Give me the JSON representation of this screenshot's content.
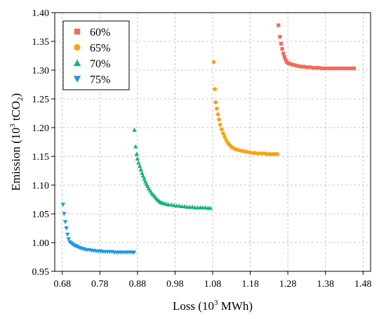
{
  "chart_data": {
    "type": "scatter",
    "xlabel": {
      "main": "Loss (10",
      "sup": "3",
      "rest": " MWh)"
    },
    "ylabel": {
      "main": "Emission (10",
      "sup": "3",
      "mid": " tCO",
      "sub": "2",
      "rest": ")"
    },
    "xlim": [
      0.66,
      1.5
    ],
    "ylim": [
      0.95,
      1.4
    ],
    "xticks": [
      0.68,
      0.78,
      0.88,
      0.98,
      1.08,
      1.18,
      1.28,
      1.38,
      1.48
    ],
    "xtick_labels": [
      "0.68",
      "0.78",
      "0.88",
      "0.98",
      "1.08",
      "1.18",
      "1.28",
      "1.38",
      "1.48"
    ],
    "yticks": [
      0.95,
      1.0,
      1.05,
      1.1,
      1.15,
      1.2,
      1.25,
      1.3,
      1.35,
      1.4
    ],
    "ytick_labels": [
      "0.95",
      "1.00",
      "1.05",
      "1.10",
      "1.15",
      "1.20",
      "1.25",
      "1.30",
      "1.35",
      "1.40"
    ],
    "grid": true,
    "legend_position": "top-left",
    "series": [
      {
        "name": "60%",
        "marker": "square",
        "color": "#f26b5b",
        "x": [
          1.255,
          1.259,
          1.262,
          1.265,
          1.268,
          1.271,
          1.274,
          1.277,
          1.281,
          1.285,
          1.29,
          1.296,
          1.302,
          1.309,
          1.316,
          1.323,
          1.331,
          1.339,
          1.347,
          1.355,
          1.363,
          1.371,
          1.379,
          1.387,
          1.395,
          1.403,
          1.411,
          1.419,
          1.427,
          1.435,
          1.443,
          1.451,
          1.456
        ],
        "y": [
          1.378,
          1.358,
          1.346,
          1.337,
          1.329,
          1.323,
          1.318,
          1.314,
          1.312,
          1.311,
          1.31,
          1.309,
          1.308,
          1.307,
          1.306,
          1.306,
          1.305,
          1.305,
          1.304,
          1.304,
          1.304,
          1.303,
          1.303,
          1.303,
          1.303,
          1.303,
          1.303,
          1.303,
          1.303,
          1.303,
          1.303,
          1.303,
          1.303
        ]
      },
      {
        "name": "65%",
        "marker": "circle",
        "color": "#f5a511",
        "x": [
          1.083,
          1.086,
          1.088,
          1.091,
          1.094,
          1.097,
          1.1,
          1.104,
          1.108,
          1.112,
          1.116,
          1.121,
          1.126,
          1.131,
          1.136,
          1.142,
          1.148,
          1.155,
          1.162,
          1.169,
          1.177,
          1.185,
          1.193,
          1.201,
          1.209,
          1.217,
          1.225,
          1.232,
          1.239,
          1.246,
          1.252
        ],
        "y": [
          1.314,
          1.267,
          1.244,
          1.233,
          1.223,
          1.214,
          1.205,
          1.197,
          1.19,
          1.184,
          1.178,
          1.173,
          1.169,
          1.166,
          1.164,
          1.162,
          1.161,
          1.16,
          1.159,
          1.158,
          1.157,
          1.156,
          1.156,
          1.155,
          1.155,
          1.155,
          1.154,
          1.154,
          1.154,
          1.154,
          1.154
        ]
      },
      {
        "name": "70%",
        "marker": "triangle-up",
        "color": "#14b37d",
        "x": [
          0.872,
          0.875,
          0.878,
          0.88,
          0.883,
          0.886,
          0.889,
          0.892,
          0.895,
          0.898,
          0.901,
          0.904,
          0.907,
          0.91,
          0.914,
          0.918,
          0.922,
          0.926,
          0.93,
          0.934,
          0.938,
          0.942,
          0.946,
          0.951,
          0.957,
          0.963,
          0.97,
          0.977,
          0.984,
          0.991,
          0.998,
          1.005,
          1.012,
          1.019,
          1.026,
          1.033,
          1.04,
          1.047,
          1.054,
          1.061,
          1.068,
          1.074
        ],
        "y": [
          1.196,
          1.167,
          1.154,
          1.146,
          1.139,
          1.133,
          1.127,
          1.121,
          1.116,
          1.111,
          1.106,
          1.102,
          1.098,
          1.094,
          1.09,
          1.086,
          1.083,
          1.08,
          1.077,
          1.074,
          1.072,
          1.07,
          1.069,
          1.068,
          1.067,
          1.066,
          1.066,
          1.065,
          1.064,
          1.064,
          1.063,
          1.063,
          1.062,
          1.062,
          1.062,
          1.061,
          1.061,
          1.061,
          1.061,
          1.061,
          1.06,
          1.06
        ]
      },
      {
        "name": "75%",
        "marker": "triangle-down",
        "color": "#2196e3",
        "x": [
          0.682,
          0.685,
          0.688,
          0.691,
          0.694,
          0.697,
          0.7,
          0.704,
          0.708,
          0.712,
          0.716,
          0.72,
          0.725,
          0.73,
          0.735,
          0.74,
          0.746,
          0.752,
          0.758,
          0.764,
          0.77,
          0.776,
          0.782,
          0.788,
          0.794,
          0.8,
          0.806,
          0.812,
          0.818,
          0.824,
          0.83,
          0.836,
          0.842,
          0.848,
          0.854,
          0.86,
          0.866,
          0.871
        ],
        "y": [
          1.066,
          1.05,
          1.036,
          1.025,
          1.014,
          1.006,
          1.001,
          0.999,
          0.997,
          0.995,
          0.994,
          0.993,
          0.991,
          0.99,
          0.989,
          0.988,
          0.987,
          0.987,
          0.986,
          0.986,
          0.985,
          0.985,
          0.985,
          0.984,
          0.984,
          0.984,
          0.984,
          0.984,
          0.983,
          0.983,
          0.983,
          0.983,
          0.983,
          0.983,
          0.983,
          0.983,
          0.983,
          0.983
        ]
      }
    ]
  }
}
